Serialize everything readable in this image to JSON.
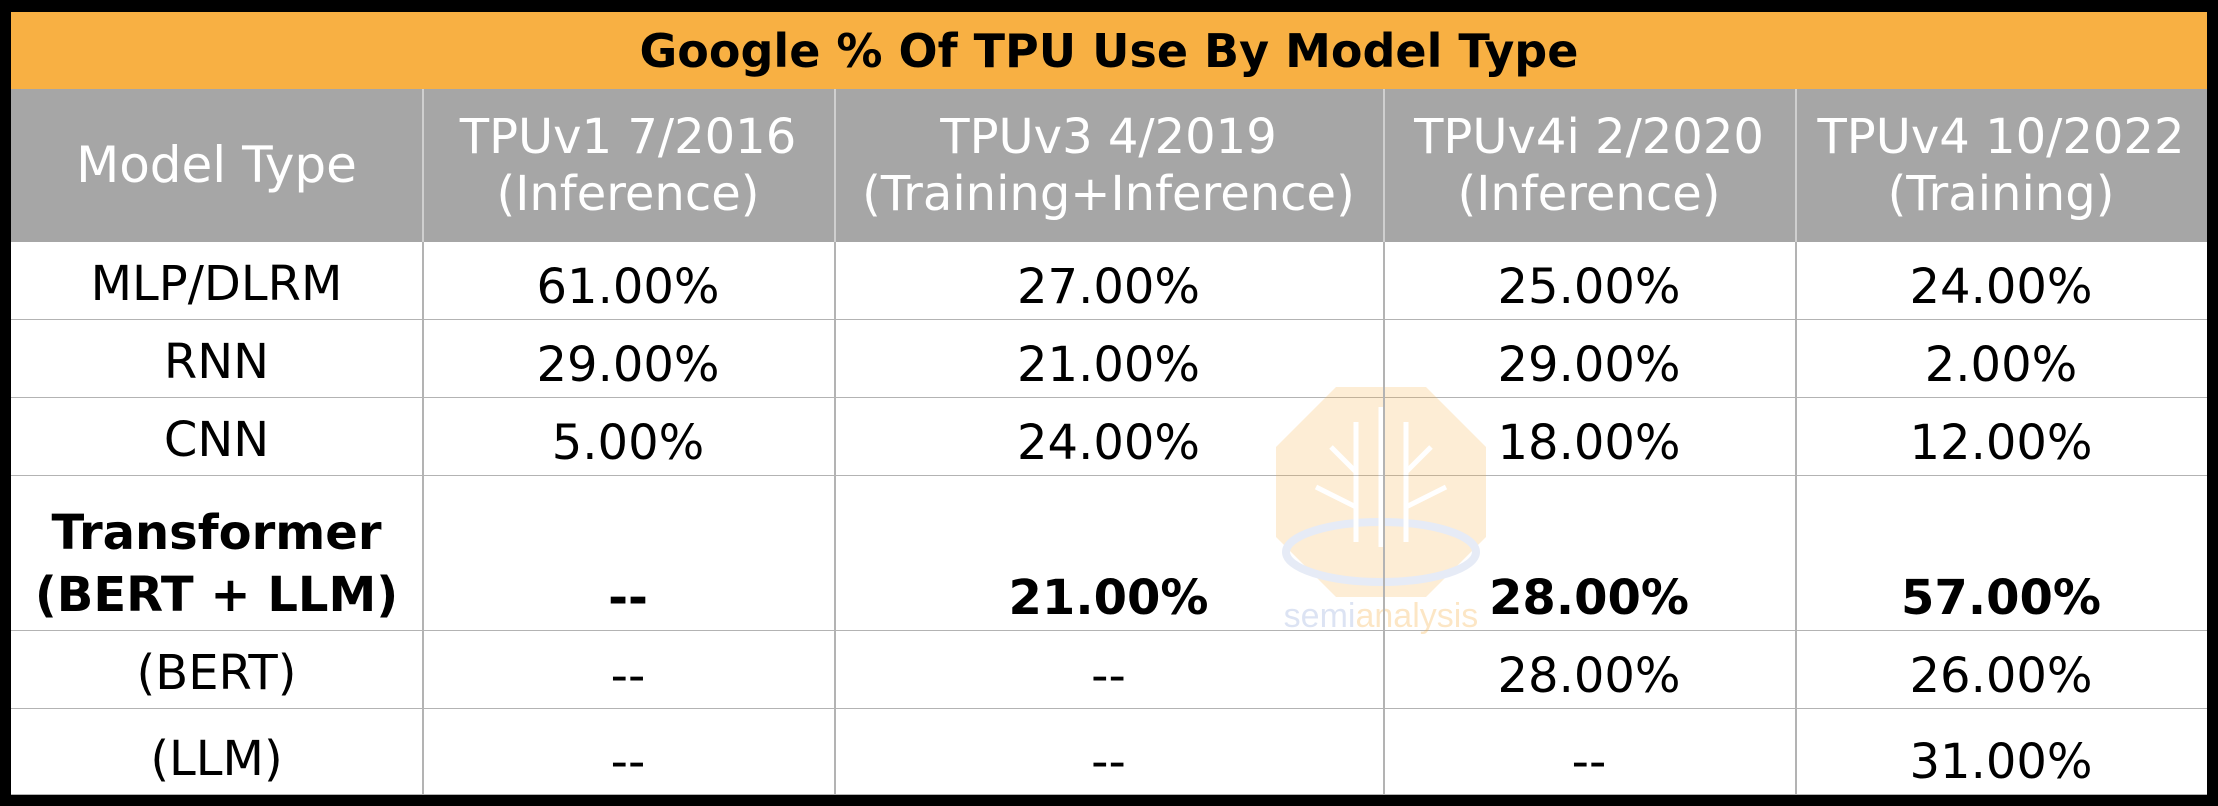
{
  "chart_data": {
    "type": "table",
    "title": "Google % Of TPU Use By Model Type",
    "columns": [
      {
        "line1": "Model Type",
        "line2": ""
      },
      {
        "line1": "TPUv1 7/2016",
        "line2": "(Inference)"
      },
      {
        "line1": "TPUv3 4/2019",
        "line2": "(Training+Inference)"
      },
      {
        "line1": "TPUv4i 2/2020",
        "line2": "(Inference)"
      },
      {
        "line1": "TPUv4 10/2022",
        "line2": "(Training)"
      }
    ],
    "rows": [
      {
        "label": [
          "MLP/DLRM"
        ],
        "bold": false,
        "values": [
          "61.00%",
          "27.00%",
          "25.00%",
          "24.00%"
        ]
      },
      {
        "label": [
          "RNN"
        ],
        "bold": false,
        "values": [
          "29.00%",
          "21.00%",
          "29.00%",
          "2.00%"
        ]
      },
      {
        "label": [
          "CNN"
        ],
        "bold": false,
        "values": [
          "5.00%",
          "24.00%",
          "18.00%",
          "12.00%"
        ]
      },
      {
        "label": [
          "Transformer",
          "(BERT + LLM)"
        ],
        "bold": true,
        "values": [
          "--",
          "21.00%",
          "28.00%",
          "57.00%"
        ]
      },
      {
        "label": [
          "(BERT)"
        ],
        "bold": false,
        "values": [
          "--",
          "--",
          "28.00%",
          "26.00%"
        ]
      },
      {
        "label": [
          "(LLM)"
        ],
        "bold": false,
        "values": [
          "--",
          "--",
          "--",
          "31.00%"
        ]
      }
    ]
  },
  "watermark": {
    "part1": "semi",
    "part2": "analysis"
  },
  "colors": {
    "title_bg": "#f8b043",
    "header_bg": "#a6a6a6",
    "watermark_orange": "#f8b043",
    "watermark_blue": "#8fa6d8"
  }
}
